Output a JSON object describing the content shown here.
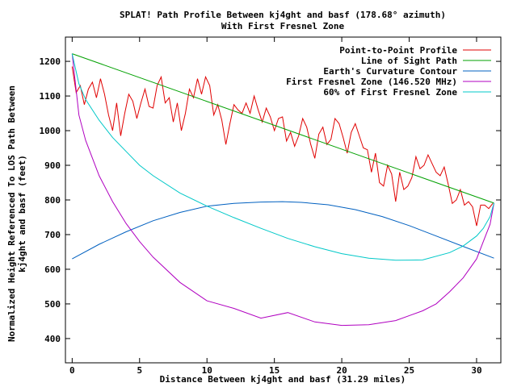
{
  "chart_data": {
    "type": "line",
    "title": "SPLAT! Path Profile Between kj4ght and basf (178.68° azimuth)",
    "subtitle": "With First Fresnel Zone",
    "xlabel": "Distance Between kj4ght and basf (31.29 miles)",
    "ylabel_line1": "Normalized Height Referenced To LOS Path Between",
    "ylabel_line2": "kj4ght and basf (feet)",
    "xlim": [
      -0.5,
      31.8
    ],
    "ylim": [
      330,
      1270
    ],
    "xticks": [
      0,
      5,
      10,
      15,
      20,
      25,
      30
    ],
    "yticks": [
      400,
      500,
      600,
      700,
      800,
      900,
      1000,
      1100,
      1200
    ],
    "legend_position": "top-right",
    "grid": false,
    "series": [
      {
        "name": "Point-to-Point Profile",
        "color": "#e00000",
        "x": [
          0,
          0.3,
          0.6,
          0.9,
          1.2,
          1.5,
          1.8,
          2.1,
          2.4,
          2.7,
          3.0,
          3.3,
          3.6,
          3.9,
          4.2,
          4.5,
          4.8,
          5.1,
          5.4,
          5.7,
          6.0,
          6.3,
          6.6,
          6.9,
          7.2,
          7.5,
          7.8,
          8.1,
          8.4,
          8.7,
          9.0,
          9.3,
          9.6,
          9.9,
          10.2,
          10.5,
          10.8,
          11.1,
          11.4,
          11.7,
          12.0,
          12.3,
          12.6,
          12.9,
          13.2,
          13.5,
          13.8,
          14.1,
          14.4,
          14.7,
          15.0,
          15.3,
          15.6,
          15.9,
          16.2,
          16.5,
          16.8,
          17.1,
          17.4,
          17.7,
          18.0,
          18.3,
          18.6,
          18.9,
          19.2,
          19.5,
          19.8,
          20.1,
          20.4,
          20.7,
          21.0,
          21.3,
          21.6,
          21.9,
          22.2,
          22.5,
          22.8,
          23.1,
          23.4,
          23.7,
          24.0,
          24.3,
          24.6,
          24.9,
          25.2,
          25.5,
          25.8,
          26.1,
          26.4,
          26.7,
          27.0,
          27.3,
          27.6,
          27.9,
          28.2,
          28.5,
          28.8,
          29.1,
          29.4,
          29.7,
          30.0,
          30.3,
          30.6,
          30.9,
          31.2
        ],
        "values": [
          1185,
          1110,
          1130,
          1075,
          1120,
          1140,
          1095,
          1150,
          1105,
          1045,
          1000,
          1080,
          985,
          1050,
          1105,
          1085,
          1035,
          1080,
          1120,
          1070,
          1065,
          1130,
          1155,
          1080,
          1095,
          1025,
          1080,
          1000,
          1050,
          1120,
          1095,
          1150,
          1105,
          1155,
          1130,
          1045,
          1075,
          1030,
          960,
          1020,
          1075,
          1060,
          1050,
          1080,
          1050,
          1100,
          1060,
          1025,
          1065,
          1040,
          1000,
          1035,
          1040,
          970,
          995,
          955,
          985,
          1035,
          1010,
          960,
          920,
          990,
          1010,
          960,
          975,
          1035,
          1020,
          980,
          935,
          995,
          1020,
          985,
          950,
          945,
          880,
          935,
          850,
          840,
          900,
          875,
          795,
          880,
          830,
          840,
          865,
          925,
          890,
          900,
          930,
          905,
          880,
          870,
          895,
          845,
          790,
          800,
          830,
          785,
          795,
          780,
          725,
          785,
          785,
          775,
          790
        ]
      },
      {
        "name": "Line of Sight Path",
        "color": "#00a000",
        "x": [
          0,
          31.29
        ],
        "values": [
          1222,
          791
        ]
      },
      {
        "name": "Earth's Curvature Contour",
        "color": "#0060c0",
        "x": [
          0,
          2,
          4,
          6,
          8,
          10,
          12,
          14,
          15.6,
          17,
          19,
          21,
          23,
          25,
          27,
          29,
          31.29
        ],
        "values": [
          630,
          672,
          708,
          740,
          764,
          782,
          790,
          794,
          795,
          793,
          786,
          772,
          752,
          726,
          696,
          666,
          632
        ]
      },
      {
        "name": "First Fresnel Zone (146.520 MHz)",
        "color": "#b000c0",
        "x": [
          0,
          0.5,
          1,
          2,
          3,
          4,
          5,
          6,
          8,
          10,
          12,
          14,
          16,
          18,
          20,
          22,
          24,
          26,
          27,
          28,
          29,
          30,
          30.5,
          31,
          31.29
        ],
        "values": [
          1222,
          1045,
          972,
          870,
          795,
          732,
          680,
          635,
          562,
          509,
          487,
          459,
          475,
          448,
          438,
          440,
          452,
          480,
          500,
          535,
          575,
          630,
          680,
          730,
          791
        ]
      },
      {
        "name": "60% of First Fresnel Zone",
        "color": "#00c8c8",
        "x": [
          0,
          0.5,
          1,
          2,
          3,
          4,
          5,
          6,
          8,
          10,
          12,
          14,
          16,
          18,
          20,
          22,
          24,
          26,
          28,
          29,
          30,
          30.5,
          31,
          31.29
        ],
        "values": [
          1222,
          1135,
          1090,
          1030,
          980,
          940,
          900,
          870,
          820,
          782,
          749,
          718,
          689,
          665,
          645,
          632,
          626,
          627,
          648,
          667,
          696,
          718,
          752,
          791
        ]
      }
    ]
  }
}
